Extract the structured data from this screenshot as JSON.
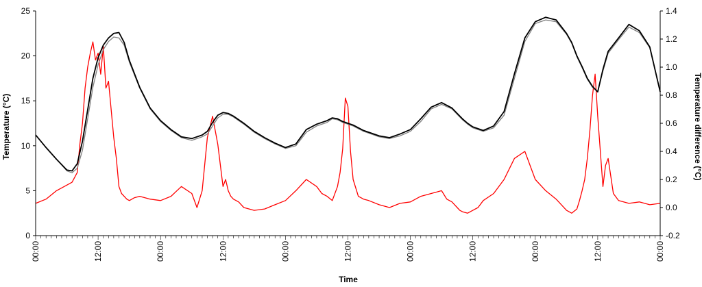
{
  "chart_data": {
    "type": "line",
    "title": "",
    "xlabel": "Time",
    "ylabel": "Temperature (°C)",
    "y2label": "Temperature difference (°C)",
    "ylim": [
      0,
      25
    ],
    "y2lim": [
      -0.2,
      1.4
    ],
    "yticks": [
      0,
      5,
      10,
      15,
      20,
      25
    ],
    "y2ticks": [
      "-0.2",
      "0.0",
      "0.2",
      "0.4",
      "0.6",
      "0.8",
      "1.0",
      "1.2",
      "1.4"
    ],
    "xlim_hours": [
      0,
      120
    ],
    "x_tick_labels": [
      "00:00",
      "12:00",
      "00:00",
      "12:00",
      "00:00",
      "12:00",
      "00:00",
      "12:00",
      "00:00",
      "12:00",
      "00:00"
    ],
    "grid": false,
    "legend": "none",
    "series": [
      {
        "axis": "left",
        "color": "#000000",
        "x_hours": [
          0,
          2,
          4,
          6,
          7,
          8,
          9,
          10,
          11,
          12,
          13,
          14,
          15,
          16,
          17,
          18,
          20,
          22,
          24,
          26,
          28,
          30,
          32,
          33,
          34,
          35,
          36,
          37,
          38,
          39,
          40,
          42,
          44,
          46,
          48,
          50,
          52,
          54,
          56,
          57,
          58,
          59,
          60,
          61,
          62,
          63,
          64,
          66,
          68,
          70,
          72,
          74,
          76,
          78,
          80,
          81,
          82,
          83,
          84,
          85,
          86,
          88,
          90,
          92,
          94,
          96,
          98,
          100,
          102,
          103,
          104,
          105,
          106,
          107,
          108,
          109,
          110,
          112,
          114,
          116,
          118,
          120
        ],
        "values": [
          11.2,
          9.8,
          8.5,
          7.3,
          7.2,
          8.0,
          10.5,
          14.0,
          17.5,
          19.8,
          21.2,
          22.0,
          22.5,
          22.6,
          21.5,
          19.5,
          16.5,
          14.2,
          12.8,
          11.8,
          11.0,
          10.8,
          11.2,
          11.6,
          12.6,
          13.4,
          13.7,
          13.6,
          13.3,
          12.9,
          12.5,
          11.6,
          10.9,
          10.3,
          9.8,
          10.2,
          11.8,
          12.4,
          12.8,
          13.1,
          13.0,
          12.7,
          12.5,
          12.3,
          12.0,
          11.7,
          11.5,
          11.1,
          10.9,
          11.3,
          11.8,
          13.0,
          14.3,
          14.8,
          14.2,
          13.6,
          13.0,
          12.5,
          12.1,
          11.9,
          11.7,
          12.2,
          13.8,
          18.0,
          22.0,
          23.8,
          24.3,
          24.0,
          22.5,
          21.5,
          20.0,
          18.8,
          17.5,
          16.6,
          16.0,
          18.5,
          20.5,
          22.0,
          23.5,
          22.8,
          21.0,
          16.0
        ]
      },
      {
        "axis": "left",
        "color": "#808080",
        "x_hours": [
          0,
          2,
          4,
          6,
          7,
          8,
          9,
          10,
          11,
          12,
          13,
          14,
          15,
          16,
          17,
          18,
          20,
          22,
          24,
          26,
          28,
          30,
          32,
          33,
          34,
          35,
          36,
          37,
          38,
          39,
          40,
          42,
          44,
          46,
          48,
          50,
          52,
          54,
          56,
          57,
          58,
          59,
          60,
          61,
          62,
          63,
          64,
          66,
          68,
          70,
          72,
          74,
          76,
          78,
          80,
          81,
          82,
          83,
          84,
          85,
          86,
          88,
          90,
          92,
          94,
          96,
          98,
          100,
          102,
          103,
          104,
          105,
          106,
          107,
          108,
          109,
          110,
          112,
          114,
          116,
          118,
          120
        ],
        "values": [
          11.2,
          9.8,
          8.5,
          7.2,
          7.0,
          7.5,
          9.5,
          13.0,
          16.5,
          19.0,
          20.7,
          21.6,
          22.1,
          22.0,
          21.2,
          19.3,
          16.4,
          14.1,
          12.7,
          11.7,
          10.9,
          10.6,
          11.0,
          11.3,
          12.2,
          13.1,
          13.5,
          13.5,
          13.2,
          12.8,
          12.4,
          11.5,
          10.8,
          10.2,
          9.7,
          10.0,
          11.5,
          12.2,
          12.6,
          13.0,
          12.9,
          12.6,
          12.4,
          12.2,
          11.9,
          11.6,
          11.4,
          11.0,
          10.8,
          11.1,
          11.6,
          12.7,
          14.1,
          14.6,
          14.1,
          13.5,
          12.9,
          12.4,
          12.0,
          11.8,
          11.6,
          12.0,
          13.4,
          17.5,
          21.6,
          23.6,
          24.0,
          23.8,
          22.4,
          21.4,
          19.9,
          18.7,
          17.4,
          16.5,
          16.0,
          18.3,
          20.3,
          21.8,
          23.2,
          22.6,
          20.9,
          16.0
        ]
      },
      {
        "axis": "right",
        "color": "#ff0000",
        "x_hours": [
          0,
          2,
          4,
          6,
          7,
          8,
          8.5,
          9,
          9.5,
          10,
          10.5,
          11,
          11.5,
          12,
          12.5,
          13,
          13.5,
          14,
          14.5,
          15,
          15.5,
          16,
          16.5,
          17,
          17.5,
          18,
          19,
          20,
          22,
          24,
          26,
          28,
          30,
          31,
          32,
          33,
          34,
          35,
          35.5,
          36,
          36.5,
          37,
          37.5,
          38,
          39,
          40,
          42,
          44,
          46,
          48,
          50,
          52,
          54,
          55,
          56,
          57,
          58,
          58.5,
          59,
          59.5,
          60,
          60.5,
          61,
          62,
          63,
          64,
          66,
          68,
          70,
          72,
          74,
          76,
          78,
          79,
          80,
          80.5,
          81,
          81.5,
          82,
          83,
          84,
          85,
          86,
          88,
          90,
          92,
          94,
          96,
          98,
          100,
          102,
          103,
          104,
          104.5,
          105,
          105.5,
          106,
          106.5,
          107,
          107.5,
          108,
          108.5,
          109,
          109.5,
          110,
          111,
          112,
          114,
          116,
          118,
          120
        ],
        "values": [
          0.03,
          0.06,
          0.12,
          0.16,
          0.18,
          0.25,
          0.45,
          0.6,
          0.85,
          1.0,
          1.1,
          1.18,
          1.05,
          1.1,
          0.95,
          1.15,
          0.85,
          0.9,
          0.7,
          0.5,
          0.35,
          0.15,
          0.1,
          0.08,
          0.06,
          0.05,
          0.07,
          0.08,
          0.06,
          0.05,
          0.08,
          0.15,
          0.1,
          0.0,
          0.12,
          0.5,
          0.65,
          0.45,
          0.3,
          0.15,
          0.2,
          0.12,
          0.08,
          0.06,
          0.04,
          0.0,
          -0.02,
          -0.01,
          0.02,
          0.05,
          0.12,
          0.2,
          0.15,
          0.1,
          0.08,
          0.05,
          0.15,
          0.25,
          0.42,
          0.78,
          0.72,
          0.4,
          0.2,
          0.08,
          0.06,
          0.05,
          0.02,
          0.0,
          0.03,
          0.04,
          0.08,
          0.1,
          0.12,
          0.06,
          0.04,
          0.02,
          0.0,
          -0.02,
          -0.03,
          -0.04,
          -0.02,
          0.0,
          0.05,
          0.1,
          0.2,
          0.35,
          0.4,
          0.2,
          0.12,
          0.06,
          -0.02,
          -0.04,
          -0.01,
          0.05,
          0.12,
          0.2,
          0.35,
          0.55,
          0.8,
          0.95,
          0.65,
          0.4,
          0.15,
          0.3,
          0.35,
          0.1,
          0.05,
          0.03,
          0.04,
          0.02,
          0.03
        ]
      }
    ]
  }
}
